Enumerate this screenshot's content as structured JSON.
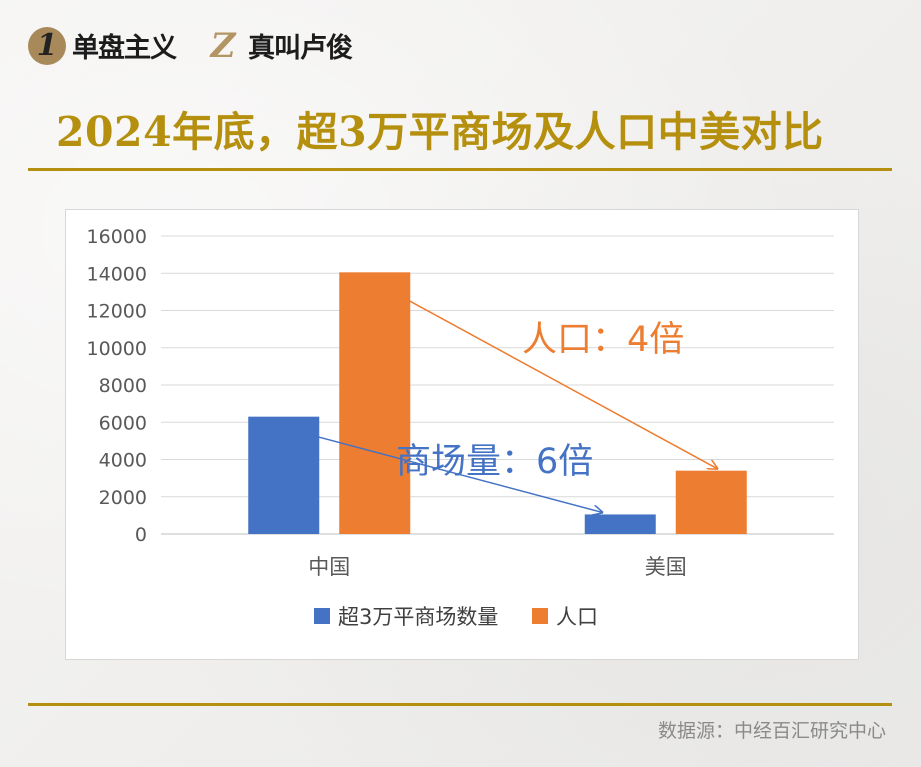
{
  "brand": {
    "logo1_glyph": "1",
    "logo1_name": "单盘主义",
    "logo2_glyph": "Z",
    "logo2_name": "真叫卢俊"
  },
  "title": "2024年底，超3万平商场及人口中美对比",
  "source": "数据源：中经百汇研究中心",
  "colors": {
    "series1": "#4472c4",
    "series2": "#ed7d31",
    "title": "#b5900f"
  },
  "chart_data": {
    "type": "bar",
    "categories": [
      "中国",
      "美国"
    ],
    "series": [
      {
        "name": "超3万平商场数量",
        "values": [
          6300,
          1050
        ]
      },
      {
        "name": "人口",
        "values": [
          14050,
          3400
        ]
      }
    ],
    "ylim": [
      0,
      16000
    ],
    "yticks": [
      "16000",
      "14000",
      "12000",
      "10000",
      "8000",
      "6000",
      "4000",
      "2000",
      "0"
    ],
    "grid": true,
    "legend": "bottom",
    "annotations": [
      {
        "text": "人口：4倍",
        "series": 1
      },
      {
        "text": "商场量：6倍",
        "series": 0
      }
    ]
  }
}
